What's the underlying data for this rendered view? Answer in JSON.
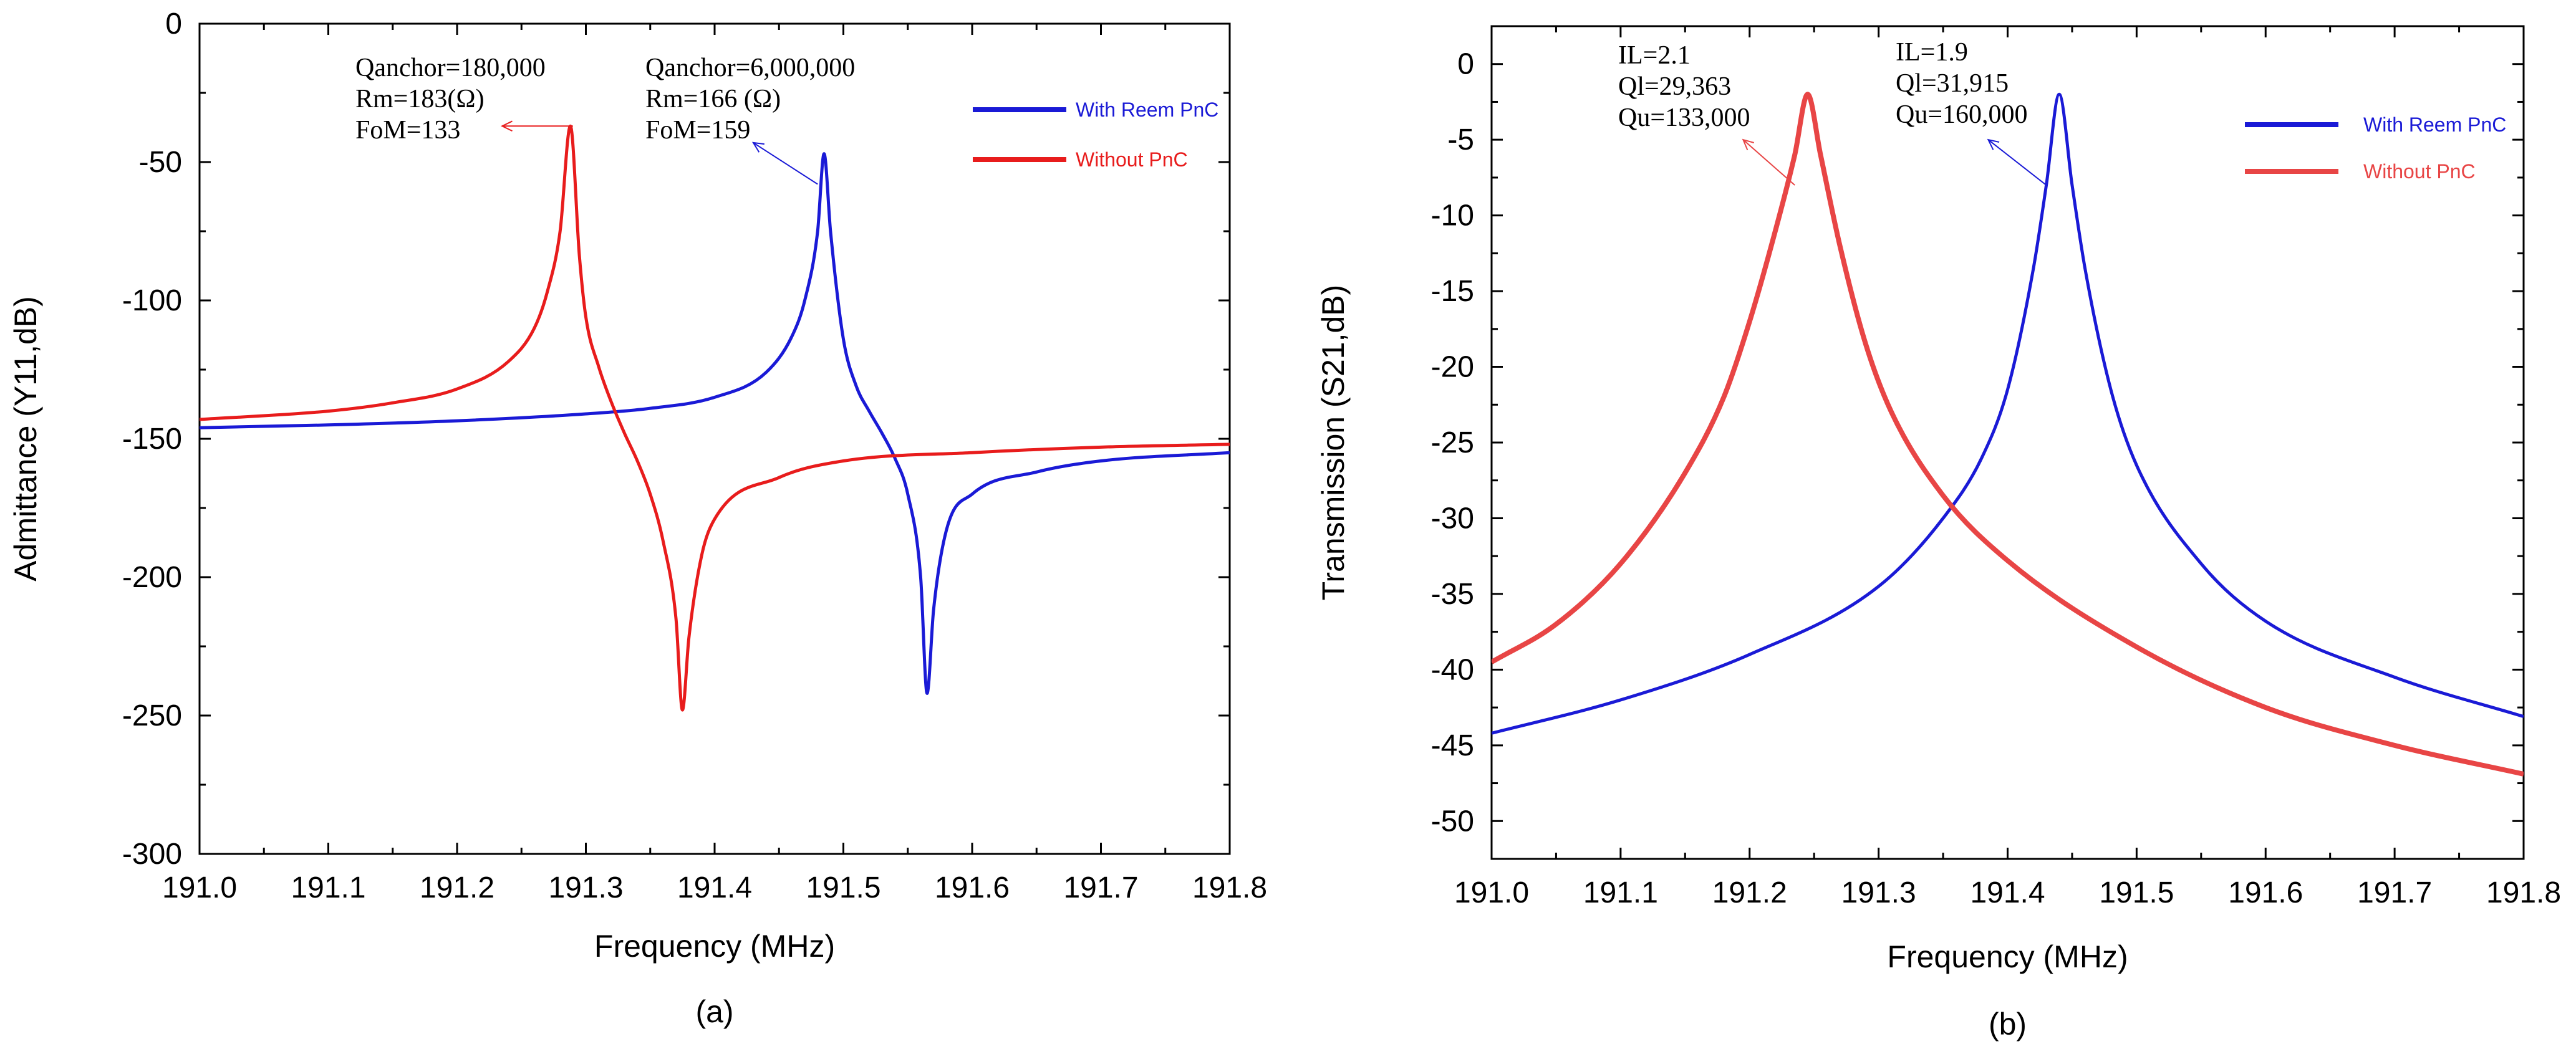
{
  "chart_data": [
    {
      "type": "line",
      "panel_label": "(a)",
      "xlabel": "Frequency (MHz)",
      "ylabel": "Admittance (Y11,dB)",
      "xlim": [
        191.0,
        191.8
      ],
      "ylim": [
        -300,
        0
      ],
      "xticks": [
        "191.0",
        "191.1",
        "191.2",
        "191.3",
        "191.4",
        "191.5",
        "191.6",
        "191.7",
        "191.8"
      ],
      "yticks": [
        "0",
        "-50",
        "-100",
        "-150",
        "-200",
        "-250",
        "-300"
      ],
      "legend_position": "top-right",
      "grid": false,
      "series": [
        {
          "name": "With Reem PnC",
          "color": "#1a1ad6",
          "x": [
            191.0,
            191.1,
            191.2,
            191.3,
            191.35,
            191.4,
            191.44,
            191.46,
            191.47,
            191.48,
            191.485,
            191.49,
            191.5,
            191.51,
            191.52,
            191.53,
            191.54,
            191.55,
            191.56,
            191.565,
            191.57,
            191.58,
            191.6,
            191.65,
            191.7,
            191.8
          ],
          "y": [
            -146,
            -145,
            -143.5,
            -141,
            -139,
            -135,
            -126,
            -113,
            -100,
            -75,
            -47,
            -75,
            -114,
            -131,
            -140,
            -148,
            -157,
            -170,
            -200,
            -242,
            -212,
            -183,
            -170,
            -162,
            -158,
            -155
          ]
        },
        {
          "name": "Without PnC",
          "color": "#e81c1c",
          "x": [
            191.0,
            191.1,
            191.15,
            191.2,
            191.24,
            191.26,
            191.27,
            191.28,
            191.288,
            191.295,
            191.3,
            191.31,
            191.32,
            191.33,
            191.34,
            191.35,
            191.36,
            191.37,
            191.375,
            191.38,
            191.39,
            191.4,
            191.45,
            191.5,
            191.6,
            191.7,
            191.8
          ],
          "y": [
            -143,
            -140,
            -137,
            -132,
            -122,
            -110,
            -97,
            -75,
            -37,
            -84,
            -106,
            -124,
            -137,
            -148,
            -158,
            -170,
            -187,
            -215,
            -248,
            -222,
            -192,
            -179,
            -164,
            -158,
            -155,
            -153,
            -152
          ]
        }
      ],
      "annotations": [
        {
          "lines": [
            "Qanchor=180,000",
            "Rm=183(Ω)",
            "FoM=133"
          ],
          "color": "#000000",
          "arrow_from": [
            191.29,
            -37
          ],
          "arrow_to": [
            191.235,
            -37
          ]
        },
        {
          "lines": [
            "Qanchor=6,000,000",
            "Rm=166 (Ω)",
            "FoM=159"
          ],
          "color": "#000000",
          "arrow_from": [
            191.48,
            -58
          ],
          "arrow_to": [
            191.43,
            -43
          ]
        }
      ]
    },
    {
      "type": "line",
      "panel_label": "(b)",
      "xlabel": "Frequency (MHz)",
      "ylabel": "Transmission (S21,dB)",
      "xlim": [
        191.0,
        191.8
      ],
      "ylim": [
        -52.5,
        2.5
      ],
      "xticks": [
        "191.0",
        "191.1",
        "191.2",
        "191.3",
        "191.4",
        "191.5",
        "191.6",
        "191.7",
        "191.8"
      ],
      "yticks": [
        "0",
        "-5",
        "-10",
        "-15",
        "-20",
        "-25",
        "-30",
        "-35",
        "-40",
        "-45",
        "-50"
      ],
      "legend_position": "top-right",
      "grid": false,
      "series": [
        {
          "name": "With Reem PnC",
          "color": "#1a1ad6",
          "x": [
            191.0,
            191.1,
            191.2,
            191.3,
            191.35,
            191.38,
            191.4,
            191.42,
            191.43,
            191.44,
            191.45,
            191.46,
            191.48,
            191.5,
            191.55,
            191.6,
            191.7,
            191.8
          ],
          "y": [
            -44.2,
            -42,
            -39,
            -34.5,
            -30,
            -26,
            -21.5,
            -13.5,
            -8,
            -2,
            -8,
            -13.5,
            -21.5,
            -26.5,
            -33,
            -36.8,
            -40.5,
            -43.1
          ]
        },
        {
          "name": "Without PnC",
          "color": "#e84545",
          "x": [
            191.0,
            191.05,
            191.1,
            191.15,
            191.18,
            191.2,
            191.22,
            191.235,
            191.245,
            191.255,
            191.27,
            191.29,
            191.31,
            191.35,
            191.4,
            191.5,
            191.6,
            191.7,
            191.8
          ],
          "y": [
            -39.5,
            -37,
            -33,
            -27,
            -22,
            -17,
            -11,
            -6,
            -2,
            -6,
            -12,
            -18.5,
            -23,
            -28.5,
            -32.8,
            -38.5,
            -42.5,
            -45,
            -46.9
          ]
        }
      ],
      "annotations": [
        {
          "lines": [
            "IL=2.1",
            "Ql=29,363",
            "Qu=133,000"
          ],
          "color": "#000000",
          "arrow_from": [
            191.235,
            -8
          ],
          "arrow_to": [
            191.195,
            -5
          ]
        },
        {
          "lines": [
            "IL=1.9",
            "Ql=31,915",
            "Qu=160,000"
          ],
          "color": "#000000",
          "arrow_from": [
            191.43,
            -8
          ],
          "arrow_to": [
            191.385,
            -5
          ]
        }
      ]
    }
  ]
}
